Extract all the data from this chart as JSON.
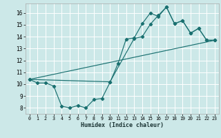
{
  "title": "",
  "xlabel": "Humidex (Indice chaleur)",
  "bg_color": "#cce8e8",
  "grid_color": "#ffffff",
  "line_color": "#1a7070",
  "xlim": [
    -0.5,
    23.5
  ],
  "ylim": [
    7.5,
    16.8
  ],
  "yticks": [
    8,
    9,
    10,
    11,
    12,
    13,
    14,
    15,
    16
  ],
  "xticks": [
    0,
    1,
    2,
    3,
    4,
    5,
    6,
    7,
    8,
    9,
    10,
    11,
    12,
    13,
    14,
    15,
    16,
    17,
    18,
    19,
    20,
    21,
    22,
    23
  ],
  "line1_x": [
    0,
    1,
    2,
    3,
    4,
    5,
    6,
    7,
    8,
    9,
    10,
    11,
    12,
    13,
    14,
    15,
    16,
    17,
    18,
    19,
    20,
    21,
    22,
    23
  ],
  "line1_y": [
    10.4,
    10.1,
    10.1,
    9.85,
    8.15,
    8.0,
    8.2,
    8.0,
    8.7,
    8.8,
    10.15,
    11.75,
    13.8,
    13.9,
    15.1,
    16.0,
    15.7,
    16.5,
    15.1,
    15.35,
    14.3,
    14.7,
    13.7,
    13.7
  ],
  "line2_x": [
    0,
    10,
    13,
    14,
    15,
    16,
    17,
    18,
    19,
    20,
    21,
    22,
    23
  ],
  "line2_y": [
    10.4,
    10.2,
    13.85,
    14.0,
    15.05,
    15.8,
    16.5,
    15.1,
    15.35,
    14.3,
    14.7,
    13.7,
    13.7
  ],
  "line3_x": [
    0,
    23
  ],
  "line3_y": [
    10.4,
    13.7
  ]
}
